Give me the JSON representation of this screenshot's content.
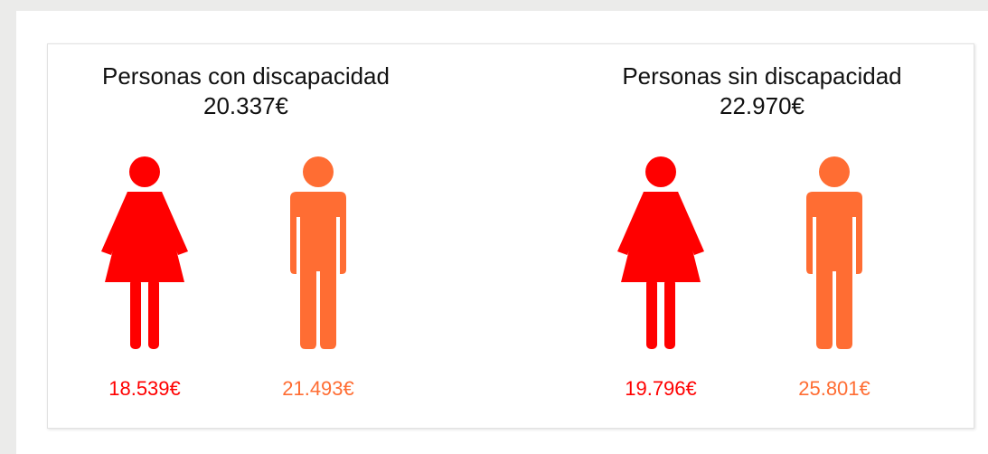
{
  "panels": [
    {
      "title": "Personas con discapacidad",
      "total": "20.337€",
      "figures": [
        {
          "kind": "woman",
          "amount": "18.539€",
          "color": "#ff0000"
        },
        {
          "kind": "man",
          "amount": "21.493€",
          "color": "#ff6d33"
        }
      ]
    },
    {
      "title": "Personas sin discapacidad",
      "total": "22.970€",
      "figures": [
        {
          "kind": "woman",
          "amount": "19.796€",
          "color": "#ff0000"
        },
        {
          "kind": "man",
          "amount": "25.801€",
          "color": "#ff6d33"
        }
      ]
    }
  ]
}
